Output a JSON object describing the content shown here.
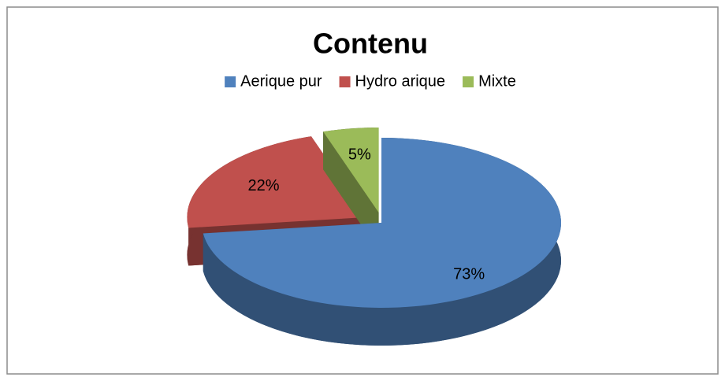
{
  "chart_data": {
    "type": "pie",
    "title": "Contenu",
    "categories": [
      "Aerique pur",
      "Hydro arique",
      "Mixte"
    ],
    "values": [
      73,
      22,
      5
    ],
    "value_labels": [
      "73%",
      "22%",
      "5%"
    ],
    "colors": [
      "#4f81bd",
      "#c0504d",
      "#9bbb59"
    ],
    "legend": "top"
  }
}
